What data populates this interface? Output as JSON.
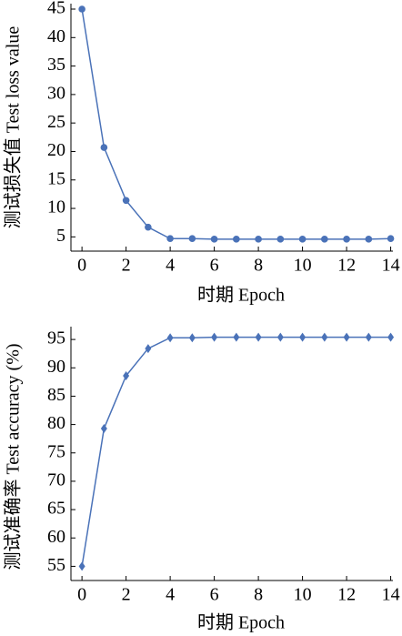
{
  "chart_data": [
    {
      "type": "line",
      "x_label": "时期 Epoch",
      "y_label": "测试损失值 Test loss value",
      "marker": "circle",
      "color": "#4a72b8",
      "x": [
        0,
        1,
        2,
        3,
        4,
        5,
        6,
        7,
        8,
        9,
        10,
        11,
        12,
        13,
        14
      ],
      "values": [
        45,
        20.7,
        11.4,
        6.7,
        4.7,
        4.7,
        4.6,
        4.6,
        4.6,
        4.6,
        4.6,
        4.6,
        4.6,
        4.6,
        4.7
      ],
      "xlim": [
        -0.5,
        14.1
      ],
      "xticks": [
        0,
        2,
        4,
        6,
        8,
        10,
        12,
        14
      ],
      "ylim": [
        2.5,
        45
      ],
      "yticks": [
        5,
        10,
        15,
        20,
        25,
        30,
        35,
        40,
        45
      ]
    },
    {
      "type": "line",
      "x_label": "时期 Epoch",
      "y_label": "测试准确率 Test accuracy (%)",
      "marker": "diamond",
      "color": "#4a72b8",
      "x": [
        0,
        1,
        2,
        3,
        4,
        5,
        6,
        7,
        8,
        9,
        10,
        11,
        12,
        13,
        14
      ],
      "values": [
        55,
        79.3,
        88.6,
        93.4,
        95.3,
        95.3,
        95.4,
        95.4,
        95.4,
        95.4,
        95.4,
        95.4,
        95.4,
        95.4,
        95.4
      ],
      "xlim": [
        -0.5,
        14.1
      ],
      "xticks": [
        0,
        2,
        4,
        6,
        8,
        10,
        12,
        14
      ],
      "ylim": [
        52.5,
        96.3
      ],
      "yticks": [
        55,
        60,
        65,
        70,
        75,
        80,
        85,
        90,
        95
      ]
    }
  ]
}
